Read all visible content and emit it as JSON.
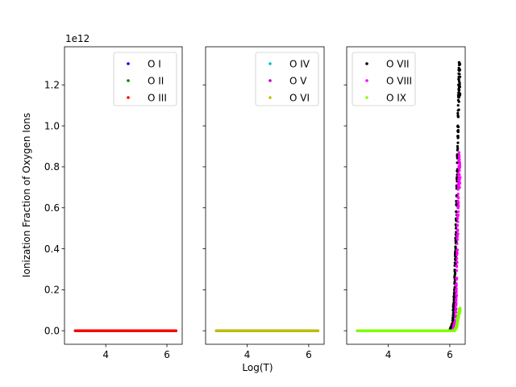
{
  "figure": {
    "ylabel": "Ionization Fraction of Oxygen Ions",
    "xlabel": "Log(T)",
    "y_offset_label": "1e12"
  },
  "chart_data": [
    {
      "type": "scatter",
      "xlim": [
        2.65,
        6.5
      ],
      "ylim": [
        -0.066,
        1.386
      ],
      "x_ticks": [
        4,
        6
      ],
      "y_ticks": [
        0.0,
        0.2,
        0.4,
        0.6,
        0.8,
        1.0,
        1.2
      ],
      "y_tick_labels": [
        "0.0",
        "0.2",
        "0.4",
        "0.6",
        "0.8",
        "1.0",
        "1.2"
      ],
      "legend_position": "top-right",
      "series": [
        {
          "name": "O I",
          "color": "#0000ff",
          "x_range": [
            3.0,
            6.3
          ],
          "y_profile": [
            [
              3.0,
              0.0
            ],
            [
              6.3,
              0.0
            ]
          ]
        },
        {
          "name": "O II",
          "color": "#008000",
          "x_range": [
            3.0,
            6.3
          ],
          "y_profile": [
            [
              3.0,
              0.0
            ],
            [
              6.3,
              0.0
            ]
          ]
        },
        {
          "name": "O III",
          "color": "#ff0000",
          "x_range": [
            3.0,
            6.3
          ],
          "y_profile": [
            [
              3.0,
              0.0
            ],
            [
              6.3,
              0.0
            ]
          ]
        }
      ]
    },
    {
      "type": "scatter",
      "xlim": [
        2.65,
        6.5
      ],
      "ylim": [
        -0.066,
        1.386
      ],
      "x_ticks": [
        4,
        6
      ],
      "legend_position": "top-right",
      "series": [
        {
          "name": "O IV",
          "color": "#00bfbf",
          "x_range": [
            3.0,
            6.3
          ],
          "y_profile": [
            [
              3.0,
              0.0
            ],
            [
              6.3,
              0.0
            ]
          ]
        },
        {
          "name": "O V",
          "color": "#bf00bf",
          "x_range": [
            3.0,
            6.3
          ],
          "y_profile": [
            [
              3.0,
              0.0
            ],
            [
              6.3,
              0.0
            ]
          ]
        },
        {
          "name": "O VI",
          "color": "#bfbf00",
          "x_range": [
            3.0,
            6.3
          ],
          "y_profile": [
            [
              3.0,
              0.0
            ],
            [
              6.3,
              0.0
            ]
          ]
        }
      ]
    },
    {
      "type": "scatter",
      "xlim": [
        2.65,
        6.5
      ],
      "ylim": [
        -0.066,
        1.386
      ],
      "x_ticks": [
        4,
        6
      ],
      "legend_position": "top-left",
      "series": [
        {
          "name": "O VII",
          "color": "#000000",
          "x_range": [
            3.0,
            6.33
          ],
          "y_profile": [
            [
              3.0,
              0.0
            ],
            [
              6.0,
              0.0
            ],
            [
              6.1,
              0.04
            ],
            [
              6.15,
              0.2
            ],
            [
              6.2,
              0.5
            ],
            [
              6.25,
              0.9
            ],
            [
              6.28,
              1.2
            ],
            [
              6.3,
              1.31
            ],
            [
              6.33,
              1.3
            ]
          ]
        },
        {
          "name": "O VIII",
          "color": "#ff00ff",
          "x_range": [
            3.0,
            6.33
          ],
          "y_profile": [
            [
              3.0,
              0.0
            ],
            [
              6.1,
              0.0
            ],
            [
              6.18,
              0.05
            ],
            [
              6.22,
              0.25
            ],
            [
              6.26,
              0.6
            ],
            [
              6.3,
              0.87
            ],
            [
              6.33,
              0.8
            ]
          ]
        },
        {
          "name": "O IX",
          "color": "#7fff00",
          "x_range": [
            3.0,
            6.33
          ],
          "y_profile": [
            [
              3.0,
              0.0
            ],
            [
              6.15,
              0.0
            ],
            [
              6.22,
              0.02
            ],
            [
              6.28,
              0.08
            ],
            [
              6.32,
              0.11
            ],
            [
              6.33,
              0.11
            ]
          ]
        }
      ]
    }
  ]
}
